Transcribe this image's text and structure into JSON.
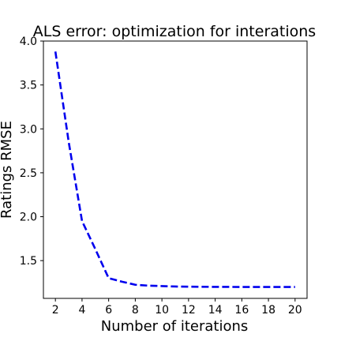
{
  "chart_data": {
    "type": "line",
    "title": "ALS error: optimization for interations",
    "xlabel": "Number of iterations",
    "ylabel": "Ratings RMSE",
    "xlim": [
      1.1,
      20.9
    ],
    "ylim": [
      1.07,
      4.0
    ],
    "xticks": [
      2,
      4,
      6,
      8,
      10,
      12,
      14,
      16,
      18,
      20
    ],
    "yticks": [
      1.5,
      2.0,
      2.5,
      3.0,
      3.5,
      4.0
    ],
    "ytick_labels": [
      "1.5",
      "2.0",
      "2.5",
      "3.0",
      "3.5",
      "4.0"
    ],
    "grid": false,
    "legend": false,
    "series": [
      {
        "color": "#0000ee",
        "linestyle": "dashed",
        "x": [
          2,
          3,
          4,
          5,
          6,
          7,
          8,
          9,
          10,
          11,
          12,
          13,
          14,
          15,
          16,
          17,
          18,
          19,
          20
        ],
        "y": [
          3.88,
          2.85,
          1.95,
          1.63,
          1.3,
          1.26,
          1.225,
          1.215,
          1.21,
          1.205,
          1.203,
          1.202,
          1.201,
          1.2005,
          1.2,
          1.2,
          1.2,
          1.2,
          1.2
        ]
      }
    ]
  }
}
